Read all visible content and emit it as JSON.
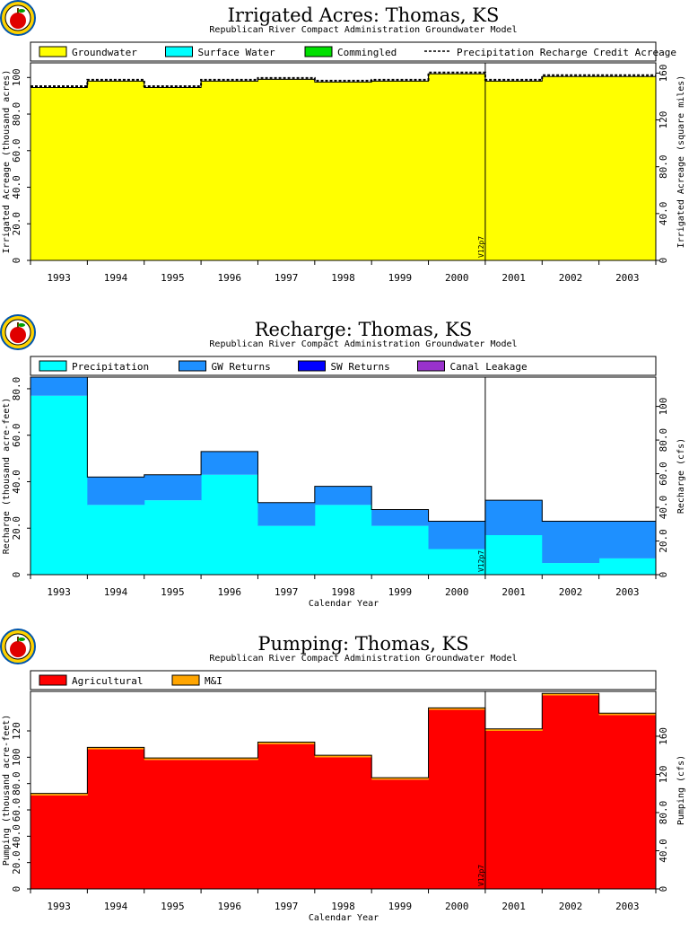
{
  "chart_data": [
    {
      "type": "area",
      "title": "Irrigated Acres: Thomas, KS",
      "subtitle": "Republican River Compact Administration Groundwater Model",
      "xlabel": "",
      "ylabel": "Irrigated Acreage (thousand acres)",
      "y2label": "Irrigated Acreage (square miles)",
      "ylim": [
        0,
        108
      ],
      "y2lim": [
        0,
        168.75
      ],
      "yticks": [
        "0",
        "20.0",
        "40.0",
        "60.0",
        "80.0",
        "100"
      ],
      "y2ticks": [
        "0",
        "40.0",
        "80.0",
        "120",
        "160"
      ],
      "categories": [
        "1993",
        "1994",
        "1995",
        "1996",
        "1997",
        "1998",
        "1999",
        "2000",
        "2001",
        "2002",
        "2003"
      ],
      "series": [
        {
          "name": "Groundwater",
          "color": "#ffff00",
          "values": [
            94.5,
            98,
            94.5,
            98,
            99,
            97.5,
            98,
            102,
            98,
            100.5,
            100.5
          ]
        },
        {
          "name": "Surface Water",
          "color": "#00ffff",
          "values": [
            0,
            0,
            0,
            0,
            0,
            0,
            0,
            0,
            0,
            0,
            0
          ]
        },
        {
          "name": "Commingled",
          "color": "#00e000",
          "values": [
            0,
            0,
            0,
            0,
            0,
            0,
            0,
            0,
            0,
            0,
            0
          ]
        }
      ],
      "line_series": {
        "name": "Precipitation Recharge Credit Acreage",
        "style": "dashed",
        "values": [
          94.5,
          98,
          94.5,
          98,
          99,
          97.5,
          98,
          102,
          98,
          100.5,
          100.5
        ]
      },
      "marker": {
        "label": "V12p7",
        "after_index": 7
      },
      "legend": "top",
      "grid": false
    },
    {
      "type": "area",
      "title": "Recharge: Thomas, KS",
      "subtitle": "Republican River Compact Administration Groundwater Model",
      "xlabel": "Calendar Year",
      "ylabel": "Recharge (thousand acre-feet)",
      "y2label": "Recharge (cfs)",
      "ylim": [
        0,
        85
      ],
      "y2lim": [
        0,
        117.4
      ],
      "yticks": [
        "0",
        "20.0",
        "40.0",
        "60.0",
        "80.0"
      ],
      "y2ticks": [
        "0",
        "20.0",
        "40.0",
        "60.0",
        "80.0",
        "100"
      ],
      "categories": [
        "1993",
        "1994",
        "1995",
        "1996",
        "1997",
        "1998",
        "1999",
        "2000",
        "2001",
        "2002",
        "2003"
      ],
      "series": [
        {
          "name": "Precipitation",
          "color": "#00ffff",
          "values": [
            77,
            30,
            32,
            43,
            21,
            30,
            21,
            11,
            17,
            5,
            7
          ]
        },
        {
          "name": "GW Returns",
          "color": "#1e90ff",
          "values": [
            8,
            12,
            11,
            10,
            10,
            8,
            7,
            12,
            15,
            18,
            16
          ]
        },
        {
          "name": "SW Returns",
          "color": "#0000ff",
          "values": [
            0,
            0,
            0,
            0,
            0,
            0,
            0,
            0,
            0,
            0,
            0
          ]
        },
        {
          "name": "Canal Leakage",
          "color": "#9932cc",
          "values": [
            0,
            0,
            0,
            0,
            0,
            0,
            0,
            0,
            0,
            0,
            0
          ]
        }
      ],
      "marker": {
        "label": "V12p7",
        "after_index": 7
      },
      "legend": "top",
      "grid": false
    },
    {
      "type": "area",
      "title": "Pumping: Thomas, KS",
      "subtitle": "Republican River Compact Administration Groundwater Model",
      "xlabel": "Calendar Year",
      "ylabel": "Pumping (thousand acre-feet)",
      "y2label": "Pumping (cfs)",
      "ylim": [
        0,
        150
      ],
      "y2lim": [
        0,
        207
      ],
      "yticks": [
        "0",
        "20.0",
        "40.0",
        "60.0",
        "80.0",
        "100",
        "120"
      ],
      "y2ticks": [
        "0",
        "40.0",
        "80.0",
        "120",
        "160"
      ],
      "categories": [
        "1993",
        "1994",
        "1995",
        "1996",
        "1997",
        "1998",
        "1999",
        "2000",
        "2001",
        "2002",
        "2003"
      ],
      "series": [
        {
          "name": "Agricultural",
          "color": "#ff0000",
          "values": [
            71,
            106,
            98,
            98,
            110,
            100,
            83,
            136,
            120,
            147,
            132
          ]
        },
        {
          "name": "M&I",
          "color": "#ffa500",
          "values": [
            1.5,
            1.5,
            1.5,
            1.5,
            1.5,
            1.5,
            1.5,
            1.5,
            1.5,
            1.5,
            1.5
          ]
        }
      ],
      "marker": {
        "label": "V12p7",
        "after_index": 7
      },
      "legend": "top",
      "grid": false
    }
  ]
}
